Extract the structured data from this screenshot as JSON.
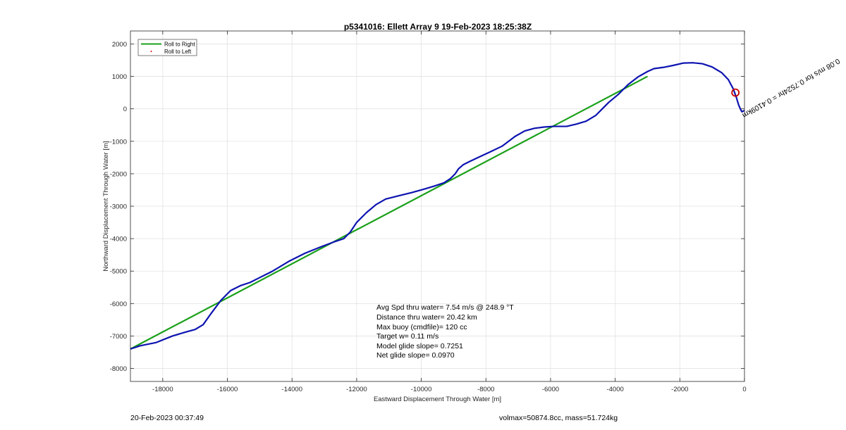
{
  "chart_data": {
    "type": "line",
    "title": "p5341016: Ellett Array 9 19-Feb-2023 18:25:38Z",
    "xlabel": "Eastward Displacement Through Water [m]",
    "ylabel": "Northward Displacement Through Water [m]",
    "xlim": [
      -19000,
      0
    ],
    "ylim": [
      -8400,
      2400
    ],
    "xticks": [
      -18000,
      -16000,
      -14000,
      -12000,
      -10000,
      -8000,
      -6000,
      -4000,
      -2000,
      0
    ],
    "yticks": [
      -8000,
      -7000,
      -6000,
      -5000,
      -4000,
      -3000,
      -2000,
      -1000,
      0,
      1000,
      2000
    ],
    "grid": true,
    "legend_position": "top-left",
    "legend": [
      "Roll to Right",
      "Roll to Left"
    ],
    "series": [
      {
        "name": "Roll to Right",
        "color": "#1aa01a",
        "x": [
          -19000,
          -3000
        ],
        "y": [
          -7400,
          1000
        ]
      },
      {
        "color": "#0d14b0",
        "x": [
          -19000,
          -18700,
          -18200,
          -17700,
          -17300,
          -17000,
          -16750,
          -16500,
          -16200,
          -15900,
          -15600,
          -15300,
          -15000,
          -14600,
          -14100,
          -13600,
          -13100,
          -12700,
          -12400,
          -12200,
          -12000,
          -11700,
          -11400,
          -11100,
          -10700,
          -10300,
          -9900,
          -9600,
          -9300,
          -9100,
          -8950,
          -8850,
          -8700,
          -8500,
          -8200,
          -7900,
          -7500,
          -7100,
          -6800,
          -6500,
          -6200,
          -5900,
          -5500,
          -5200,
          -4900,
          -4600,
          -4400,
          -4200,
          -3900,
          -3600,
          -3300,
          -3000,
          -2800,
          -2500,
          -2200,
          -1900,
          -1600,
          -1300,
          -1000,
          -700,
          -500,
          -350,
          -250,
          -180,
          -120,
          -80,
          -40,
          0
        ],
        "y": [
          -7400,
          -7300,
          -7200,
          -7000,
          -6880,
          -6800,
          -6650,
          -6300,
          -5900,
          -5600,
          -5450,
          -5350,
          -5200,
          -5000,
          -4700,
          -4450,
          -4250,
          -4100,
          -4000,
          -3800,
          -3500,
          -3200,
          -2950,
          -2780,
          -2680,
          -2580,
          -2470,
          -2380,
          -2280,
          -2150,
          -2000,
          -1850,
          -1720,
          -1620,
          -1480,
          -1340,
          -1150,
          -850,
          -680,
          -600,
          -560,
          -540,
          -540,
          -470,
          -380,
          -200,
          0,
          200,
          450,
          750,
          980,
          1150,
          1240,
          1280,
          1340,
          1410,
          1420,
          1390,
          1290,
          1110,
          900,
          620,
          350,
          120,
          -20,
          -90,
          -70,
          -50
        ]
      }
    ],
    "current_position": {
      "x": -280,
      "y": 500
    },
    "path_label": "0.08 m/s for 0.7524hr = 0.4109km",
    "stats": [
      "Avg Spd thru water=  7.54 m/s @ 248.9 °T",
      "Distance thru water= 20.42 km",
      "Max buoy (cmdfile)= 120 cc",
      "Target w= 0.11 m/s",
      "Model glide slope= 0.7251",
      "Net glide slope= 0.0970"
    ]
  },
  "footer": {
    "left": "20-Feb-2023 00:37:49",
    "right": "volmax=50874.8cc, mass=51.724kg"
  }
}
